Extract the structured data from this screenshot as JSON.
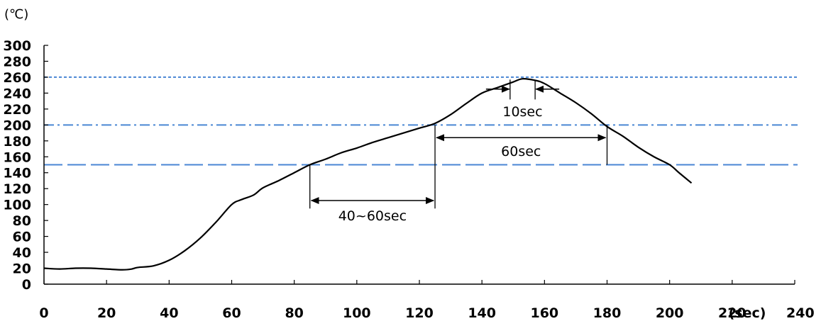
{
  "chart_data": {
    "type": "line",
    "title": "",
    "xlabel": "(sec)",
    "ylabel": "(℃)",
    "xlim": [
      0,
      240
    ],
    "ylim": [
      0,
      300
    ],
    "x_ticks": [
      "0",
      "20",
      "40",
      "60",
      "80",
      "100",
      "120",
      "140",
      "160",
      "180",
      "200",
      "220",
      "240"
    ],
    "y_ticks": [
      "0",
      "20",
      "40",
      "60",
      "80",
      "100",
      "120",
      "140",
      "160",
      "180",
      "200",
      "220",
      "240",
      "260",
      "280",
      "300"
    ],
    "grid": false,
    "series": [
      {
        "color": "#000000",
        "x": [
          0,
          5,
          10,
          15,
          20,
          25,
          28,
          30,
          35,
          40,
          45,
          50,
          55,
          60,
          63,
          67,
          70,
          75,
          80,
          85,
          90,
          95,
          100,
          105,
          110,
          115,
          120,
          125,
          130,
          135,
          140,
          145,
          150,
          153,
          157,
          160,
          165,
          170,
          175,
          180,
          185,
          190,
          195,
          200,
          203,
          207
        ],
        "y": [
          20,
          19,
          20,
          20,
          19,
          18,
          19,
          21,
          23,
          30,
          42,
          58,
          78,
          100,
          106,
          112,
          121,
          130,
          140,
          150,
          157,
          165,
          171,
          178,
          184,
          190,
          196,
          202,
          213,
          227,
          240,
          247,
          254,
          258,
          256,
          252,
          240,
          228,
          214,
          198,
          186,
          172,
          160,
          150,
          140,
          127
        ]
      }
    ],
    "reference_lines": [
      {
        "y": 260,
        "style": "dotted",
        "color": "#4a86d4"
      },
      {
        "y": 200,
        "style": "dash-dot",
        "color": "#4a86d4"
      },
      {
        "y": 150,
        "style": "dashed",
        "color": "#4a86d4"
      }
    ],
    "annotations": [
      {
        "label": "40~60sec",
        "x_from": 85,
        "x_to": 125,
        "y": 105
      },
      {
        "label": "60sec",
        "x_from": 125,
        "x_to": 180,
        "y": 184
      },
      {
        "label": "10sec",
        "x_from": 149,
        "x_to": 157,
        "y": 245
      }
    ]
  }
}
